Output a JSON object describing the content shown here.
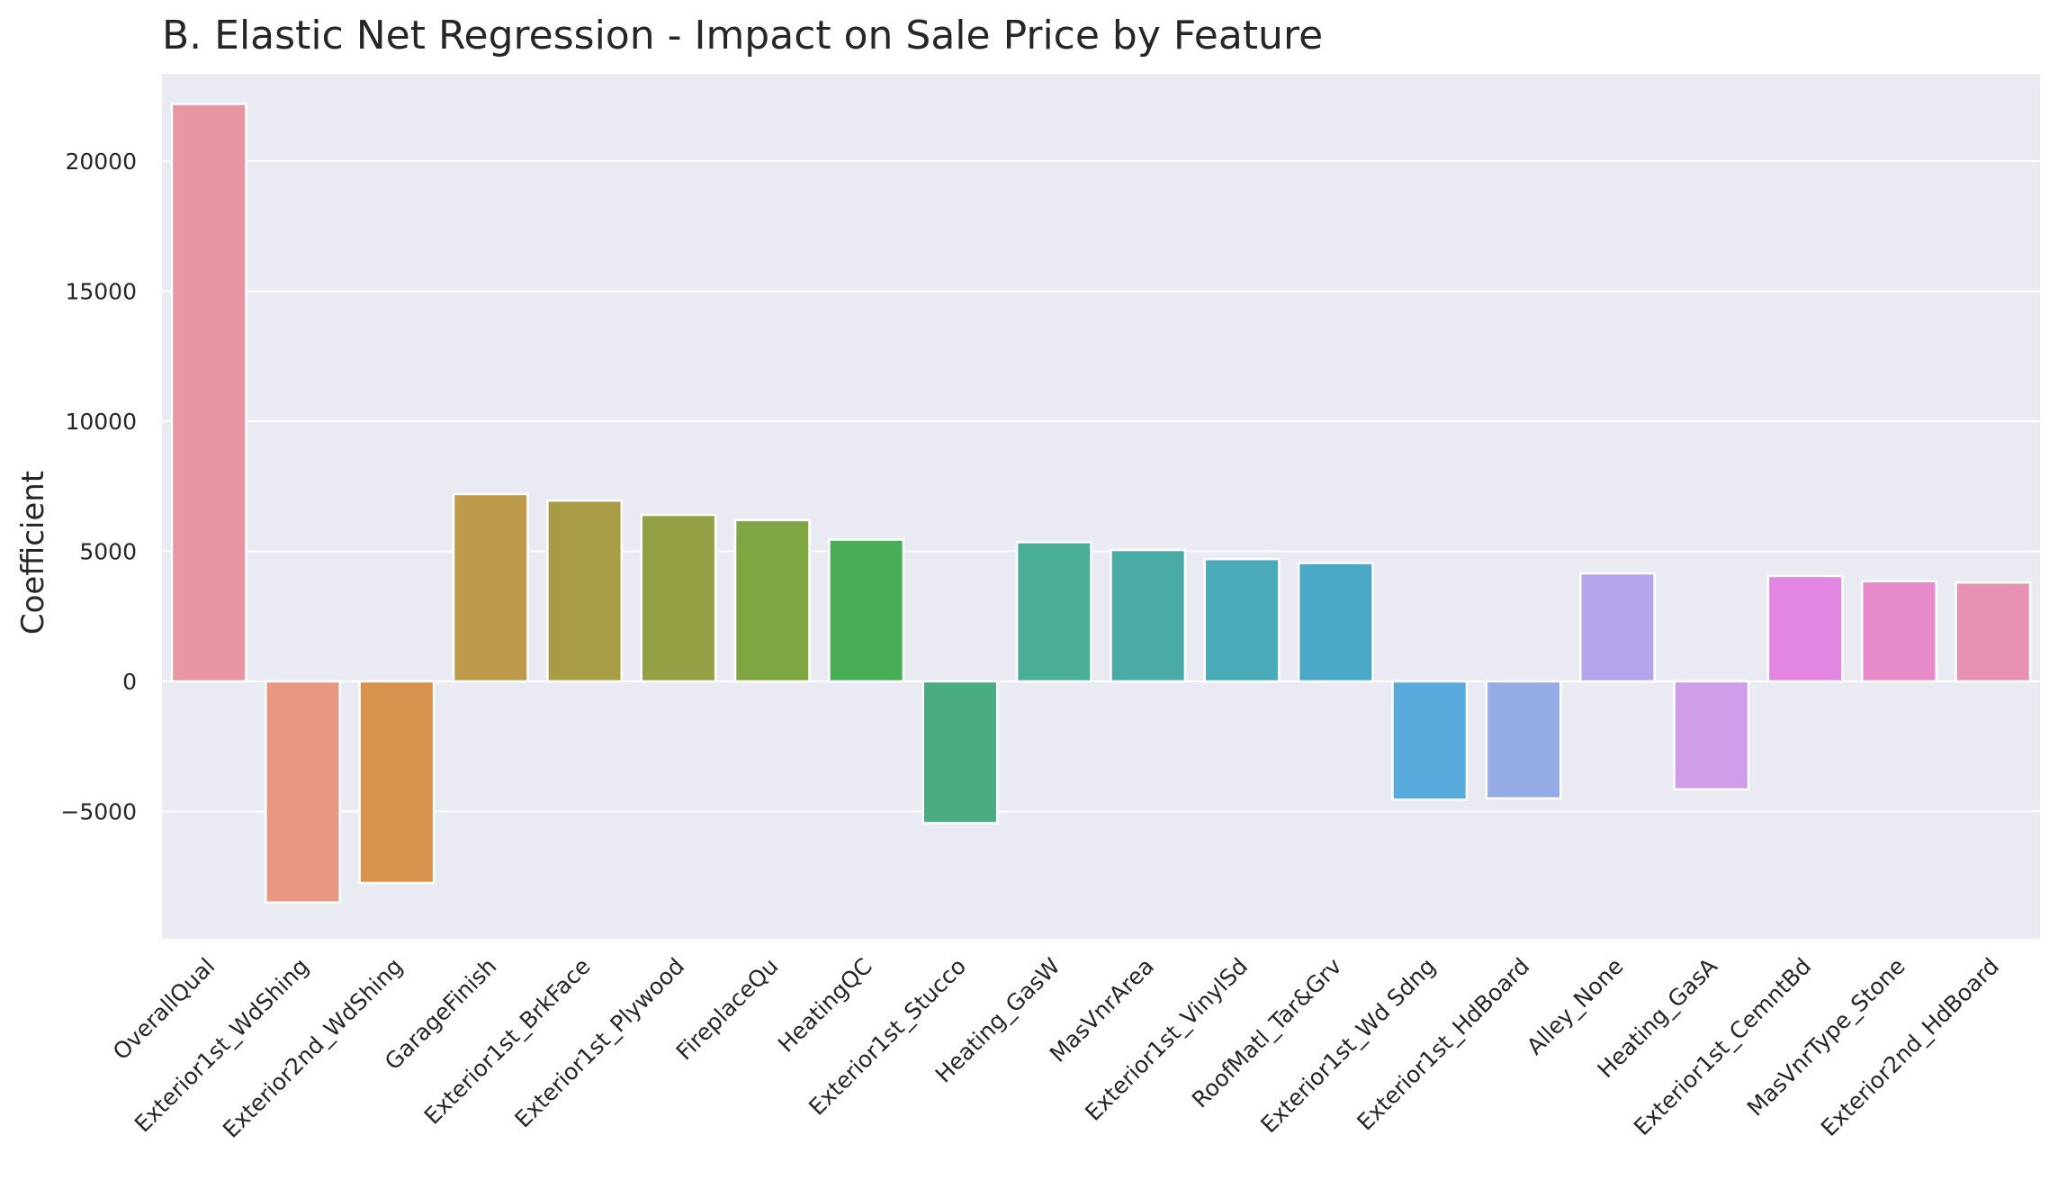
{
  "chart_data": {
    "type": "bar",
    "title": "B. Elastic Net Regression - Impact on Sale Price by Feature",
    "xlabel": "",
    "ylabel": "Coefficient",
    "ylim": [
      -10000,
      24000
    ],
    "yticks": [
      -5000,
      0,
      5000,
      10000,
      15000,
      20000
    ],
    "ytick_labels": [
      "−5000",
      "0",
      "5000",
      "10000",
      "15000",
      "20000"
    ],
    "grid": true,
    "categories": [
      "OverallQual",
      "Exterior1st_WdShing",
      "Exterior2nd_WdShing",
      "GarageFinish",
      "Exterior1st_BrkFace",
      "Exterior1st_Plywood",
      "FireplaceQu",
      "HeatingQC",
      "Exterior1st_Stucco",
      "Heating_GasW",
      "MasVnrArea",
      "Exterior1st_VinylSd",
      "RoofMatl_Tar&Grv",
      "Exterior1st_Wd Sdng",
      "Exterior1st_HdBoard",
      "Alley_None",
      "Heating_GasA",
      "Exterior1st_CemntBd",
      "MasVnrType_Stone",
      "Exterior2nd_HdBoard"
    ],
    "values": [
      22200,
      -8500,
      -7750,
      7200,
      6950,
      6400,
      6200,
      5450,
      -5450,
      5350,
      5050,
      4700,
      4550,
      -4550,
      -4500,
      4150,
      -4150,
      4050,
      3850,
      3800
    ],
    "colors": [
      "#e896a1",
      "#e89783",
      "#d7934c",
      "#be9b4c",
      "#a99c46",
      "#959f43",
      "#80a644",
      "#48ad55",
      "#4aad81",
      "#4aad95",
      "#4aaaa5",
      "#4baab7",
      "#4ba8c6",
      "#58a9dc",
      "#95abe5",
      "#b4a4eb",
      "#cf9ce8",
      "#e386e2",
      "#e88bcb",
      "#e791b3"
    ]
  }
}
